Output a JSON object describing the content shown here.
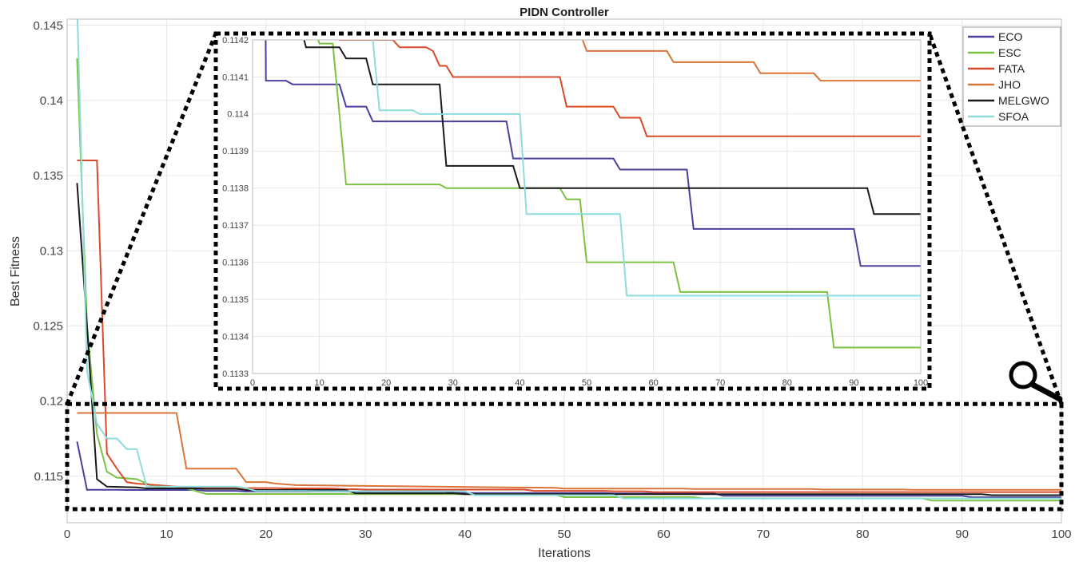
{
  "chart_data": {
    "type": "line",
    "title": "PIDN Controller",
    "xlabel": "Iterations",
    "ylabel": "Best Fitness",
    "xlim": [
      0,
      100
    ],
    "ylim": [
      0.1119,
      0.1454
    ],
    "xticks": [
      "0",
      "10",
      "20",
      "30",
      "40",
      "50",
      "60",
      "70",
      "80",
      "90",
      "100"
    ],
    "yticks": [
      "0.115",
      "0.12",
      "0.125",
      "0.13",
      "0.135",
      "0.14",
      "0.145"
    ],
    "grid": true,
    "legend_position": "top-right",
    "step": true,
    "series": [
      {
        "name": "ECO",
        "color": "#4B3F9E",
        "points": [
          [
            1,
            0.1173
          ],
          [
            2,
            0.11409
          ],
          [
            5,
            0.11409
          ],
          [
            6,
            0.11408
          ],
          [
            13,
            0.11408
          ],
          [
            14,
            0.11402
          ],
          [
            17,
            0.11402
          ],
          [
            18,
            0.11398
          ],
          [
            38,
            0.11398
          ],
          [
            39,
            0.11388
          ],
          [
            54,
            0.11388
          ],
          [
            55,
            0.11385
          ],
          [
            65,
            0.11385
          ],
          [
            66,
            0.11369
          ],
          [
            90,
            0.11369
          ],
          [
            91,
            0.11359
          ],
          [
            100,
            0.11359
          ]
        ]
      },
      {
        "name": "ESC",
        "color": "#7CC242",
        "points": [
          [
            1,
            0.1428
          ],
          [
            2,
            0.125
          ],
          [
            3,
            0.1178
          ],
          [
            4,
            0.1153
          ],
          [
            5,
            0.1149
          ],
          [
            7,
            0.1148
          ],
          [
            8,
            0.1145
          ],
          [
            9,
            0.11425
          ],
          [
            10,
            0.11419
          ],
          [
            12,
            0.11419
          ],
          [
            14,
            0.11381
          ],
          [
            28,
            0.11381
          ],
          [
            29,
            0.1138
          ],
          [
            46,
            0.1138
          ],
          [
            47,
            0.11377
          ],
          [
            49,
            0.11377
          ],
          [
            50,
            0.1136
          ],
          [
            63,
            0.1136
          ],
          [
            64,
            0.11352
          ],
          [
            86,
            0.11352
          ],
          [
            87,
            0.11337
          ],
          [
            100,
            0.11337
          ]
        ]
      },
      {
        "name": "FATA",
        "color": "#D94A2B",
        "points": [
          [
            1,
            0.136
          ],
          [
            3,
            0.136
          ],
          [
            4,
            0.1165
          ],
          [
            5,
            0.1155
          ],
          [
            6,
            0.1146
          ],
          [
            7,
            0.1145
          ],
          [
            13,
            0.1142
          ],
          [
            21,
            0.1142
          ],
          [
            22,
            0.11418
          ],
          [
            26,
            0.11418
          ],
          [
            27,
            0.11417
          ],
          [
            28,
            0.11413
          ],
          [
            29,
            0.11413
          ],
          [
            30,
            0.1141
          ],
          [
            46,
            0.1141
          ],
          [
            47,
            0.11402
          ],
          [
            54,
            0.11402
          ],
          [
            55,
            0.11399
          ],
          [
            58,
            0.11399
          ],
          [
            59,
            0.11394
          ],
          [
            100,
            0.11394
          ]
        ]
      },
      {
        "name": "JHO",
        "color": "#DB7438",
        "points": [
          [
            1,
            0.1192
          ],
          [
            11,
            0.1192
          ],
          [
            12,
            0.1155
          ],
          [
            17,
            0.1155
          ],
          [
            18,
            0.1146
          ],
          [
            20,
            0.1146
          ],
          [
            21,
            0.1145
          ],
          [
            23,
            0.1144
          ],
          [
            30,
            0.11435
          ],
          [
            49,
            0.11422
          ],
          [
            50,
            0.11417
          ],
          [
            62,
            0.11417
          ],
          [
            63,
            0.11414
          ],
          [
            75,
            0.11414
          ],
          [
            76,
            0.11411
          ],
          [
            84,
            0.11411
          ],
          [
            85,
            0.11409
          ],
          [
            100,
            0.11409
          ]
        ]
      },
      {
        "name": "MELGWO",
        "color": "#1A1A1A",
        "points": [
          [
            1,
            0.1345
          ],
          [
            2,
            0.125
          ],
          [
            3,
            0.1148
          ],
          [
            4,
            0.1143
          ],
          [
            7,
            0.11425
          ],
          [
            8,
            0.11418
          ],
          [
            13,
            0.11418
          ],
          [
            14,
            0.11415
          ],
          [
            17,
            0.11415
          ],
          [
            18,
            0.11408
          ],
          [
            28,
            0.11408
          ],
          [
            29,
            0.11386
          ],
          [
            39,
            0.11386
          ],
          [
            40,
            0.1138
          ],
          [
            92,
            0.1138
          ],
          [
            93,
            0.11373
          ],
          [
            100,
            0.11373
          ]
        ]
      },
      {
        "name": "SFOA",
        "color": "#8FDCDC",
        "points": [
          [
            1,
            0.1465
          ],
          [
            2,
            0.122
          ],
          [
            3,
            0.1185
          ],
          [
            4,
            0.1175
          ],
          [
            5,
            0.1175
          ],
          [
            6,
            0.1168
          ],
          [
            7,
            0.1168
          ],
          [
            8,
            0.1143
          ],
          [
            17,
            0.1143
          ],
          [
            18,
            0.1142
          ],
          [
            19,
            0.11401
          ],
          [
            24,
            0.11401
          ],
          [
            25,
            0.114
          ],
          [
            40,
            0.114
          ],
          [
            41,
            0.11373
          ],
          [
            55,
            0.11373
          ],
          [
            56,
            0.11351
          ],
          [
            100,
            0.11351
          ]
        ]
      }
    ],
    "inset": {
      "xlim": [
        0,
        100
      ],
      "ylim": [
        0.1133,
        0.1142
      ],
      "xticks": [
        "0",
        "10",
        "20",
        "30",
        "40",
        "50",
        "60",
        "70",
        "80",
        "90",
        "100"
      ],
      "yticks": [
        "0.1133",
        "0.1134",
        "0.1135",
        "0.1136",
        "0.1137",
        "0.1138",
        "0.1139",
        "0.114",
        "0.1141",
        "0.1142"
      ],
      "zoom_region_y": [
        0.1128,
        0.1198
      ]
    }
  }
}
